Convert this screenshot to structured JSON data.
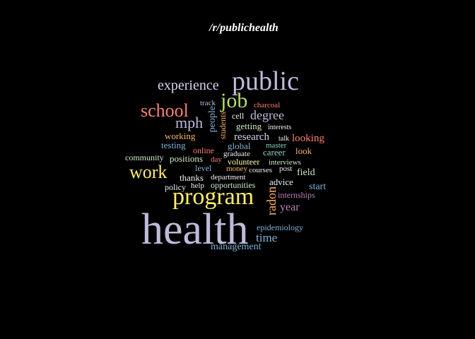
{
  "title": "/r/publichealth",
  "palette": {
    "lavender": "#bebada",
    "salmon": "#fb8072",
    "green": "#b3de69",
    "yellow": "#ffed6f",
    "orange": "#fdb462",
    "blue": "#80b1d3",
    "teal": "#8dd3c7",
    "lightlavender": "#d9d3f0",
    "pink": "#fccde5",
    "purple": "#bc80bd",
    "white": "#f0f0f0",
    "lightgreen": "#ccebc5"
  },
  "words": [
    {
      "id": "health",
      "text": "health",
      "color": "#bebada"
    },
    {
      "id": "public",
      "text": "public",
      "color": "#bebada"
    },
    {
      "id": "program",
      "text": "program",
      "color": "#ffed6f"
    },
    {
      "id": "job",
      "text": "job",
      "color": "#b3de69"
    },
    {
      "id": "school",
      "text": "school",
      "color": "#fb8072"
    },
    {
      "id": "work",
      "text": "work",
      "color": "#ffed6f"
    },
    {
      "id": "experience",
      "text": "experience",
      "color": "#d9d3f0"
    },
    {
      "id": "mph",
      "text": "mph",
      "color": "#bebada"
    },
    {
      "id": "degree",
      "text": "degree",
      "color": "#bebada"
    },
    {
      "id": "radon",
      "text": "radon",
      "color": "#fdb462"
    },
    {
      "id": "time",
      "text": "time",
      "color": "#80b1d3"
    },
    {
      "id": "year",
      "text": "year",
      "color": "#bc80bd"
    },
    {
      "id": "research",
      "text": "research",
      "color": "#d9d3f0"
    },
    {
      "id": "looking",
      "text": "looking",
      "color": "#fb8072"
    },
    {
      "id": "management",
      "text": "management",
      "color": "#80b1d3"
    },
    {
      "id": "people",
      "text": "people",
      "color": "#80b1d3"
    },
    {
      "id": "students",
      "text": "students",
      "color": "#fdb462"
    },
    {
      "id": "working",
      "text": "working",
      "color": "#fdb462"
    },
    {
      "id": "testing",
      "text": "testing",
      "color": "#80b1d3"
    },
    {
      "id": "community",
      "text": "community",
      "color": "#ccebc5"
    },
    {
      "id": "positions",
      "text": "positions",
      "color": "#ccebc5"
    },
    {
      "id": "online",
      "text": "online",
      "color": "#fb8072"
    },
    {
      "id": "global",
      "text": "global",
      "color": "#80b1d3"
    },
    {
      "id": "career",
      "text": "career",
      "color": "#8dd3c7"
    },
    {
      "id": "look",
      "text": "look",
      "color": "#fdb462"
    },
    {
      "id": "field",
      "text": "field",
      "color": "#ccebc5"
    },
    {
      "id": "start",
      "text": "start",
      "color": "#80b1d3"
    },
    {
      "id": "advice",
      "text": "advice",
      "color": "#f0f0f0"
    },
    {
      "id": "epidemiology",
      "text": "epidemiology",
      "color": "#80b1d3"
    },
    {
      "id": "internships",
      "text": "internships",
      "color": "#bc80bd"
    },
    {
      "id": "getting",
      "text": "getting",
      "color": "#ccebc5"
    },
    {
      "id": "charcoal",
      "text": "charcoal",
      "color": "#fb8072"
    },
    {
      "id": "cell",
      "text": "cell",
      "color": "#f0f0f0"
    },
    {
      "id": "track",
      "text": "track",
      "color": "#bebada"
    },
    {
      "id": "interests",
      "text": "interests",
      "color": "#f0f0f0"
    },
    {
      "id": "talk",
      "text": "talk",
      "color": "#f0f0f0"
    },
    {
      "id": "master",
      "text": "master",
      "color": "#8dd3c7"
    },
    {
      "id": "graduate",
      "text": "graduate",
      "color": "#f0f0f0"
    },
    {
      "id": "day",
      "text": "day",
      "color": "#fb8072"
    },
    {
      "id": "volunteer",
      "text": "volunteer",
      "color": "#ffffb3"
    },
    {
      "id": "interviews",
      "text": "interviews",
      "color": "#ccebc5"
    },
    {
      "id": "level",
      "text": "level",
      "color": "#80b1d3"
    },
    {
      "id": "money",
      "text": "money",
      "color": "#fdb462"
    },
    {
      "id": "courses",
      "text": "courses",
      "color": "#f0f0f0"
    },
    {
      "id": "post",
      "text": "post",
      "color": "#f0f0f0"
    },
    {
      "id": "thanks",
      "text": "thanks",
      "color": "#f0f0f0"
    },
    {
      "id": "department",
      "text": "department",
      "color": "#f0f0f0"
    },
    {
      "id": "policy",
      "text": "policy",
      "color": "#f0f0f0"
    },
    {
      "id": "help",
      "text": "help",
      "color": "#f0f0f0"
    },
    {
      "id": "opportunities",
      "text": "opportunities",
      "color": "#ccebc5"
    }
  ]
}
